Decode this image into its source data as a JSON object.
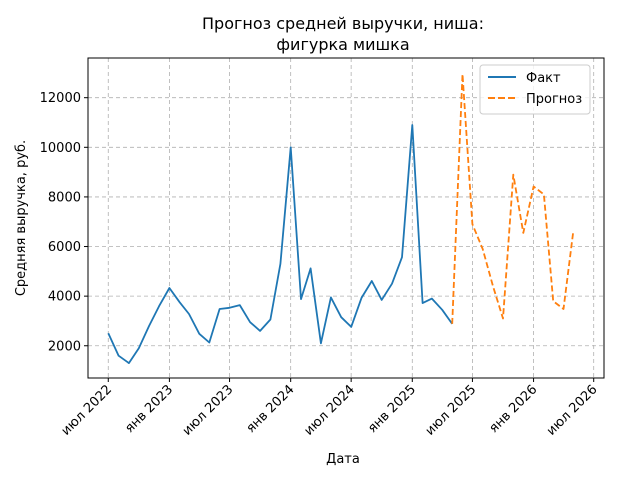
{
  "chart_data": {
    "type": "line",
    "title_line1": "Прогноз средней выручки, ниша:",
    "title_line2": "фигурка мишка",
    "xlabel": "Дата",
    "ylabel": "Средняя выручка, руб.",
    "x_ticks": [
      "2022-07-01",
      "2023-01-01",
      "2023-07-01",
      "2024-01-01",
      "2024-07-01",
      "2025-01-01",
      "2025-07-01",
      "2026-01-01",
      "2026-07-01"
    ],
    "x_tick_labels": [
      "июл 2022",
      "янв 2023",
      "июл 2023",
      "янв 2024",
      "июл 2024",
      "янв 2025",
      "июл 2025",
      "янв 2026",
      "июл 2026"
    ],
    "y_ticks": [
      2000,
      4000,
      6000,
      8000,
      10000,
      12000
    ],
    "x_range": [
      "2022-05-01",
      "2026-08-01"
    ],
    "ylim": [
      700,
      13600
    ],
    "grid": true,
    "legend_position": "top-right",
    "colors": {
      "fact": "#1f77b4",
      "forecast": "#ff7f0e",
      "grid": "#b0b0b0"
    },
    "series": [
      {
        "name": "Факт",
        "style": "solid",
        "points": [
          [
            "2022-07-01",
            2500
          ],
          [
            "2022-08-01",
            1600
          ],
          [
            "2022-09-01",
            1300
          ],
          [
            "2022-10-01",
            1900
          ],
          [
            "2022-11-01",
            2800
          ],
          [
            "2022-12-01",
            3600
          ],
          [
            "2023-01-01",
            4330
          ],
          [
            "2023-02-01",
            3750
          ],
          [
            "2023-03-01",
            3280
          ],
          [
            "2023-04-01",
            2480
          ],
          [
            "2023-05-01",
            2130
          ],
          [
            "2023-06-01",
            3480
          ],
          [
            "2023-07-01",
            3530
          ],
          [
            "2023-08-01",
            3640
          ],
          [
            "2023-09-01",
            2950
          ],
          [
            "2023-10-01",
            2600
          ],
          [
            "2023-11-01",
            3060
          ],
          [
            "2023-12-01",
            5300
          ],
          [
            "2024-01-01",
            10000
          ],
          [
            "2024-02-01",
            3880
          ],
          [
            "2024-03-01",
            5120
          ],
          [
            "2024-04-01",
            2100
          ],
          [
            "2024-05-01",
            3950
          ],
          [
            "2024-06-01",
            3150
          ],
          [
            "2024-07-01",
            2760
          ],
          [
            "2024-08-01",
            3930
          ],
          [
            "2024-09-01",
            4610
          ],
          [
            "2024-10-01",
            3850
          ],
          [
            "2024-11-01",
            4500
          ],
          [
            "2024-12-01",
            5570
          ],
          [
            "2025-01-01",
            10900
          ],
          [
            "2025-02-01",
            3720
          ],
          [
            "2025-03-01",
            3900
          ],
          [
            "2025-04-01",
            3450
          ],
          [
            "2025-05-01",
            2880
          ]
        ]
      },
      {
        "name": "Прогноз",
        "style": "dashed",
        "points": [
          [
            "2025-05-01",
            2880
          ],
          [
            "2025-06-01",
            12950
          ],
          [
            "2025-07-01",
            6900
          ],
          [
            "2025-08-01",
            5900
          ],
          [
            "2025-09-01",
            4400
          ],
          [
            "2025-10-01",
            3100
          ],
          [
            "2025-11-01",
            8900
          ],
          [
            "2025-12-01",
            6550
          ],
          [
            "2026-01-01",
            8420
          ],
          [
            "2026-02-01",
            8100
          ],
          [
            "2026-03-01",
            3800
          ],
          [
            "2026-04-01",
            3480
          ],
          [
            "2026-05-01",
            6650
          ]
        ]
      }
    ]
  }
}
